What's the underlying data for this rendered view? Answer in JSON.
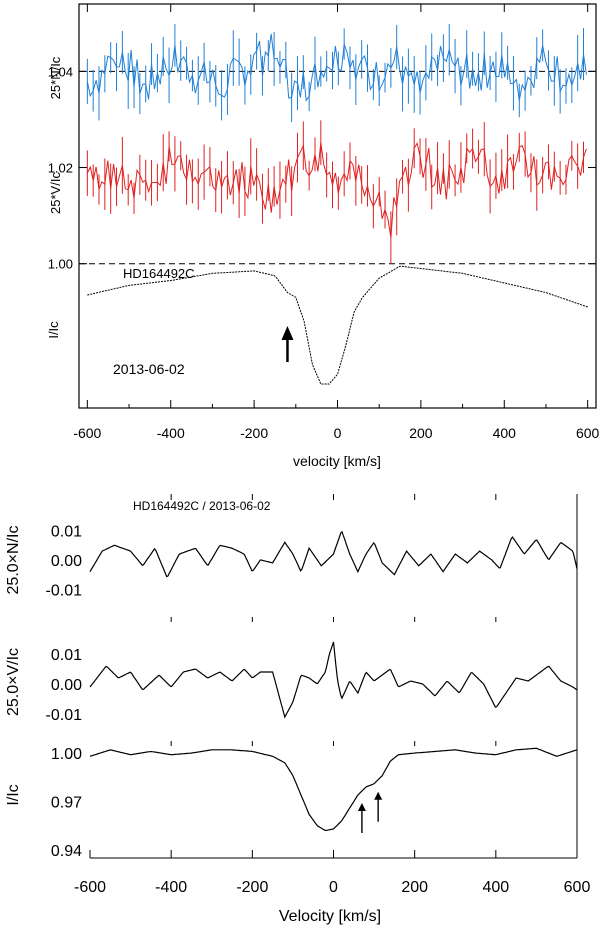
{
  "chart_data": [
    {
      "type": "line",
      "panel": "top",
      "xlabel": "velocity [km/s]",
      "xlim": [
        -620,
        620
      ],
      "ylim": [
        0.97,
        1.054
      ],
      "x_ticks": [
        -600,
        -400,
        -200,
        0,
        200,
        400,
        600
      ],
      "y_ticks": [
        1.0,
        1.02,
        1.04
      ],
      "y_tick_labels": [
        "1.00",
        "1.02",
        "1.04"
      ],
      "ylabels": [
        "25*N/Iᴄ",
        "25*V/Iᴄ",
        "I/Iᴄ"
      ],
      "annotations": {
        "star": "HD164492C",
        "date": "2013-06-02"
      },
      "reference_lines": [
        1.0,
        1.04
      ],
      "arrow_at_velocity": -120,
      "colors": {
        "N": "#1f7fd6",
        "V": "#e02020",
        "I": "#000000"
      },
      "series": [
        {
          "key": "N",
          "baseline": 1.04,
          "error_bars": true,
          "x": [
            -580,
            -520,
            -460,
            -400,
            -340,
            -280,
            -220,
            -160,
            -100,
            -40,
            20,
            80,
            140,
            200,
            260,
            320,
            380,
            440,
            500,
            560,
            590
          ],
          "values": [
            1.038,
            1.044,
            1.036,
            1.043,
            1.039,
            1.037,
            1.041,
            1.044,
            1.036,
            1.04,
            1.045,
            1.038,
            1.042,
            1.036,
            1.043,
            1.039,
            1.041,
            1.037,
            1.043,
            1.037,
            1.04
          ]
        },
        {
          "key": "V",
          "baseline": 1.02,
          "error_bars": true,
          "x": [
            -580,
            -520,
            -460,
            -400,
            -340,
            -280,
            -220,
            -160,
            -100,
            -40,
            0,
            40,
            80,
            110,
            125,
            140,
            170,
            200,
            260,
            320,
            380,
            440,
            500,
            560,
            590
          ],
          "values": [
            1.017,
            1.02,
            1.014,
            1.022,
            1.02,
            1.016,
            1.018,
            1.014,
            1.02,
            1.023,
            1.018,
            1.021,
            1.016,
            1.012,
            1.005,
            1.014,
            1.02,
            1.022,
            1.016,
            1.022,
            1.018,
            1.021,
            1.017,
            1.02,
            1.022
          ]
        },
        {
          "key": "I",
          "baseline": 1.0,
          "error_bars": false,
          "x": [
            -600,
            -500,
            -400,
            -300,
            -200,
            -150,
            -120,
            -100,
            -80,
            -60,
            -40,
            -20,
            0,
            20,
            40,
            60,
            80,
            100,
            150,
            200,
            300,
            400,
            500,
            600
          ],
          "values": [
            0.9935,
            0.9955,
            0.9965,
            0.998,
            0.9985,
            0.9975,
            0.994,
            0.993,
            0.988,
            0.979,
            0.975,
            0.975,
            0.977,
            0.983,
            0.99,
            0.993,
            0.995,
            0.997,
            0.9995,
            0.999,
            0.998,
            0.996,
            0.994,
            0.991
          ]
        }
      ]
    },
    {
      "type": "line",
      "panel": "bottom",
      "title": "HD164492C / 2013-06-02",
      "xlabel": "Velocity [km/s]",
      "xlim": [
        -600,
        600
      ],
      "x_ticks": [
        -600,
        -400,
        -200,
        0,
        200,
        400,
        600
      ],
      "subpanels": [
        {
          "ylabel": "25.0×N/Iᴄ",
          "ylim": [
            -0.014,
            0.016
          ],
          "y_tick_labels": [
            "0.01",
            "0.00",
            "-0.01"
          ],
          "y_ticks": [
            0.01,
            0.0,
            -0.01
          ],
          "x": [
            -600,
            -570,
            -540,
            -500,
            -470,
            -440,
            -410,
            -380,
            -340,
            -310,
            -280,
            -250,
            -220,
            -200,
            -180,
            -150,
            -120,
            -100,
            -80,
            -60,
            -30,
            0,
            20,
            40,
            60,
            80,
            100,
            120,
            150,
            180,
            210,
            240,
            270,
            300,
            330,
            360,
            390,
            410,
            440,
            470,
            500,
            530,
            560,
            590,
            600
          ],
          "values": [
            -0.004,
            0.003,
            0.005,
            0.003,
            -0.002,
            0.004,
            -0.006,
            0.002,
            0.004,
            -0.002,
            0.005,
            0.004,
            0.002,
            -0.004,
            0.0,
            -0.001,
            0.006,
            0.002,
            -0.004,
            0.004,
            -0.002,
            0.002,
            0.01,
            0.002,
            -0.004,
            0.002,
            0.006,
            -0.001,
            -0.005,
            0.003,
            -0.002,
            0.002,
            -0.004,
            0.002,
            -0.001,
            0.003,
            0.0,
            -0.003,
            0.008,
            0.002,
            0.007,
            0.0,
            0.006,
            0.003,
            -0.003
          ]
        },
        {
          "ylabel": "25.0×V/Iᴄ",
          "ylim": [
            -0.014,
            0.016
          ],
          "y_tick_labels": [
            "0.01",
            "0.00",
            "-0.01"
          ],
          "y_ticks": [
            0.01,
            0.0,
            -0.01
          ],
          "x": [
            -600,
            -560,
            -530,
            -500,
            -470,
            -430,
            -400,
            -370,
            -340,
            -310,
            -280,
            -250,
            -220,
            -200,
            -180,
            -150,
            -120,
            -100,
            -80,
            -60,
            -40,
            -20,
            0,
            -10,
            10,
            20,
            40,
            60,
            80,
            100,
            120,
            140,
            160,
            190,
            220,
            250,
            280,
            310,
            340,
            370,
            400,
            420,
            450,
            480,
            510,
            530,
            560,
            590,
            600
          ],
          "values": [
            -0.001,
            0.006,
            0.002,
            0.004,
            -0.002,
            0.003,
            -0.001,
            0.004,
            0.005,
            0.002,
            0.004,
            0.001,
            0.005,
            0.002,
            0.004,
            0.004,
            -0.011,
            -0.006,
            0.003,
            0.002,
            0.0,
            0.004,
            0.014,
            0.01,
            0.001,
            -0.005,
            0.001,
            -0.003,
            0.004,
            0.001,
            0.003,
            0.005,
            -0.001,
            0.001,
            0.0,
            -0.004,
            0.001,
            -0.003,
            0.004,
            0.0,
            -0.008,
            -0.004,
            0.002,
            0.001,
            0.004,
            0.006,
            0.001,
            -0.001,
            -0.002
          ]
        },
        {
          "ylabel": "I/Iᴄ",
          "ylim": [
            0.935,
            1.005
          ],
          "y_tick_labels": [
            "1.00",
            "0.97",
            "0.94"
          ],
          "y_ticks": [
            1.0,
            0.97,
            0.94
          ],
          "arrows_at_velocity": [
            70,
            110
          ],
          "x": [
            -600,
            -550,
            -500,
            -450,
            -400,
            -350,
            -300,
            -250,
            -200,
            -150,
            -120,
            -100,
            -80,
            -60,
            -40,
            -20,
            0,
            20,
            40,
            60,
            80,
            100,
            120,
            140,
            160,
            200,
            250,
            300,
            350,
            400,
            450,
            500,
            550,
            600
          ],
          "values": [
            0.998,
            1.002,
            0.999,
            1.001,
            0.999,
            1.0,
            1.002,
            1.002,
            1.001,
            0.998,
            0.994,
            0.986,
            0.974,
            0.962,
            0.955,
            0.952,
            0.953,
            0.958,
            0.966,
            0.974,
            0.979,
            0.981,
            0.986,
            0.995,
            0.999,
            1.0,
            1.001,
            1.002,
            1.0,
            0.999,
            1.002,
            1.003,
            0.998,
            1.002
          ]
        }
      ]
    }
  ]
}
